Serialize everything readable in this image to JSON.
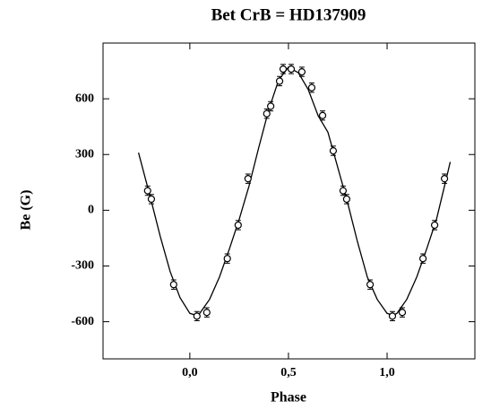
{
  "chart_data": {
    "type": "scatter",
    "title": "Bet CrB = HD137909",
    "xlabel": "Phase",
    "ylabel": "Be (G)",
    "x": [
      -0.214,
      -0.195,
      -0.082,
      0.036,
      0.086,
      0.19,
      0.245,
      0.295,
      0.39,
      0.41,
      0.455,
      0.473,
      0.514,
      0.568,
      0.618,
      0.673,
      0.727,
      0.777,
      0.795,
      0.914,
      1.027,
      1.077,
      1.182,
      1.241,
      1.291
    ],
    "values": [
      105,
      60,
      -400,
      -570,
      -550,
      -260,
      -80,
      170,
      520,
      560,
      695,
      760,
      760,
      745,
      660,
      510,
      320,
      105,
      60,
      -400,
      -570,
      -550,
      -260,
      -80,
      170
    ],
    "errors": [
      25,
      25,
      25,
      25,
      25,
      25,
      25,
      25,
      25,
      25,
      25,
      25,
      25,
      25,
      25,
      25,
      25,
      25,
      25,
      25,
      25,
      25,
      25,
      25,
      25
    ],
    "fit": {
      "x": [
        -0.26,
        -0.2,
        -0.15,
        -0.1,
        -0.05,
        0,
        0.03,
        0.05,
        0.1,
        0.15,
        0.2,
        0.25,
        0.3,
        0.35,
        0.4,
        0.45,
        0.5,
        0.55,
        0.6,
        0.65,
        0.7,
        0.75,
        0.8,
        0.85,
        0.9,
        0.95,
        1.0,
        1.03,
        1.05,
        1.1,
        1.15,
        1.2,
        1.25,
        1.3,
        1.32
      ],
      "values": [
        310,
        70,
        -140,
        -330,
        -470,
        -555,
        -565,
        -555,
        -480,
        -360,
        -210,
        -50,
        130,
        340,
        540,
        700,
        770,
        740,
        650,
        510,
        420,
        230,
        40,
        -170,
        -360,
        -480,
        -555,
        -565,
        -555,
        -480,
        -360,
        -210,
        -50,
        170,
        260
      ]
    },
    "xlim": [
      -0.44,
      1.445
    ],
    "ylim": [
      -800,
      900
    ],
    "xticks": [
      {
        "value": 0,
        "label": "0,0"
      },
      {
        "value": 0.5,
        "label": "0,5"
      },
      {
        "value": 1,
        "label": "1,0"
      }
    ],
    "yticks": [
      -600,
      -300,
      0,
      300,
      600
    ]
  }
}
